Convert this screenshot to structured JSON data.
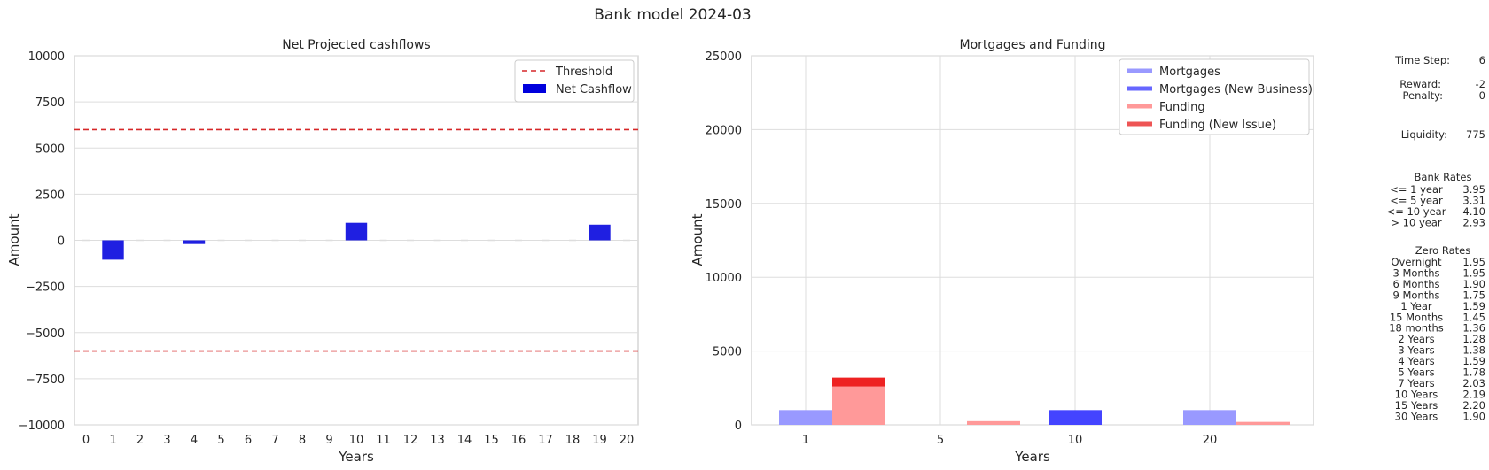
{
  "suptitle": "Bank model 2024-03",
  "colors": {
    "grid": "#dddddd",
    "axis": "#cccccc",
    "text": "#262626",
    "threshold": "#d62728",
    "net_cashflow": "#0000dd",
    "mortgages": "#9999ff",
    "mortgages_new": "#4444ff",
    "funding": "#ff9999",
    "funding_new": "#ee2222"
  },
  "chart_data": [
    {
      "type": "bar",
      "title": "Net Projected cashflows",
      "xlabel": "Years",
      "ylabel": "Amount",
      "ylim": [
        -10000,
        10000
      ],
      "yticks": [
        10000,
        7500,
        5000,
        2500,
        0,
        -2500,
        -5000,
        -7500,
        -10000
      ],
      "ytick_labels": [
        "10000",
        "7500",
        "5000",
        "2500",
        "0",
        "−2500",
        "−5000",
        "−7500",
        "−10000"
      ],
      "categories": [
        "0",
        "1",
        "2",
        "3",
        "4",
        "5",
        "6",
        "7",
        "8",
        "9",
        "10",
        "11",
        "12",
        "13",
        "14",
        "15",
        "16",
        "17",
        "18",
        "19",
        "20"
      ],
      "series": [
        {
          "name": "Net Cashflow",
          "type": "bar",
          "values": [
            0,
            -1050,
            0,
            0,
            -200,
            0,
            0,
            0,
            0,
            0,
            950,
            0,
            0,
            0,
            0,
            0,
            0,
            0,
            0,
            850,
            0
          ]
        }
      ],
      "hlines": [
        {
          "name": "Threshold",
          "y": 6000
        },
        {
          "y": -6000
        }
      ],
      "legend": {
        "placement": "top-right",
        "entries": [
          "Threshold",
          "Net Cashflow"
        ]
      },
      "grid": true
    },
    {
      "type": "bar",
      "title": "Mortgages and Funding",
      "xlabel": "Years",
      "ylabel": "Amount",
      "ylim": [
        0,
        25000
      ],
      "yticks": [
        25000,
        20000,
        15000,
        10000,
        5000,
        0
      ],
      "ytick_labels": [
        "25000",
        "20000",
        "15000",
        "10000",
        "5000",
        "0"
      ],
      "xticks": [
        "1",
        "5",
        "10",
        "20"
      ],
      "series": [
        {
          "name": "Mortgages",
          "values": [
            1000,
            0,
            0,
            1000
          ]
        },
        {
          "name": "Mortgages (New Business)",
          "values": [
            0,
            0,
            1000,
            0
          ]
        },
        {
          "name": "Funding",
          "values": [
            2600,
            250,
            0,
            200
          ]
        },
        {
          "name": "Funding (New Issue)",
          "values": [
            600,
            0,
            0,
            0
          ]
        }
      ],
      "legend": {
        "placement": "top-right",
        "entries": [
          "Mortgages",
          "Mortgages (New Business)",
          "Funding",
          "Funding (New Issue)"
        ]
      },
      "grid": true
    }
  ],
  "side_panel": {
    "time_step": {
      "label": "Time Step:",
      "value": "6"
    },
    "reward": {
      "label": "Reward:",
      "value": "-2"
    },
    "penalty": {
      "label": "Penalty:",
      "value": "0"
    },
    "liquidity": {
      "label": "Liquidity:",
      "value": "775"
    },
    "bank_rates_title": "Bank Rates",
    "bank_rates": [
      {
        "label": "<= 1 year",
        "value": "3.95"
      },
      {
        "label": "<= 5 year",
        "value": "3.31"
      },
      {
        "label": "<= 10 year",
        "value": "4.10"
      },
      {
        "label": "> 10 year",
        "value": "2.93"
      }
    ],
    "zero_rates_title": "Zero Rates",
    "zero_rates": [
      {
        "label": "Overnight",
        "value": "1.95"
      },
      {
        "label": "3 Months",
        "value": "1.95"
      },
      {
        "label": "6 Months",
        "value": "1.90"
      },
      {
        "label": "9 Months",
        "value": "1.75"
      },
      {
        "label": "1 Year",
        "value": "1.59"
      },
      {
        "label": "15 Months",
        "value": "1.45"
      },
      {
        "label": "18 months",
        "value": "1.36"
      },
      {
        "label": "2 Years",
        "value": "1.28"
      },
      {
        "label": "3 Years",
        "value": "1.38"
      },
      {
        "label": "4 Years",
        "value": "1.59"
      },
      {
        "label": "5 Years",
        "value": "1.78"
      },
      {
        "label": "7 Years",
        "value": "2.03"
      },
      {
        "label": "10 Years",
        "value": "2.19"
      },
      {
        "label": "15 Years",
        "value": "2.20"
      },
      {
        "label": "30 Years",
        "value": "1.90"
      }
    ]
  }
}
